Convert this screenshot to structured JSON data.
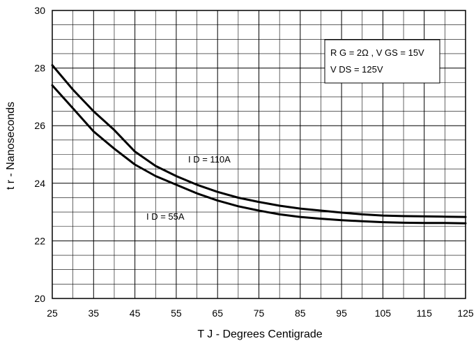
{
  "chart_data": {
    "type": "line",
    "title": "",
    "xlabel": "T J - Degrees Centigrade",
    "ylabel": "t r - Nanoseconds",
    "xlim": [
      25,
      125
    ],
    "ylim": [
      20,
      30
    ],
    "x_ticks": [
      "25",
      "35",
      "45",
      "55",
      "65",
      "75",
      "85",
      "95",
      "105",
      "115",
      "125"
    ],
    "y_ticks": [
      "20",
      "22",
      "24",
      "26",
      "28",
      "30"
    ],
    "grid": true,
    "series": [
      {
        "name": "I D = 110A",
        "x": [
          25,
          30,
          35,
          40,
          45,
          50,
          55,
          60,
          65,
          70,
          75,
          80,
          85,
          90,
          95,
          100,
          105,
          110,
          115,
          120,
          125
        ],
        "y": [
          28.1,
          27.25,
          26.5,
          25.85,
          25.1,
          24.6,
          24.25,
          23.95,
          23.7,
          23.5,
          23.35,
          23.22,
          23.12,
          23.05,
          22.98,
          22.92,
          22.88,
          22.86,
          22.85,
          22.84,
          22.83
        ]
      },
      {
        "name": "I D = 55A",
        "x": [
          25,
          30,
          35,
          40,
          45,
          50,
          55,
          60,
          65,
          70,
          75,
          80,
          85,
          90,
          95,
          100,
          105,
          110,
          115,
          120,
          125
        ],
        "y": [
          27.4,
          26.6,
          25.8,
          25.2,
          24.65,
          24.25,
          23.95,
          23.65,
          23.4,
          23.2,
          23.05,
          22.92,
          22.83,
          22.77,
          22.72,
          22.68,
          22.65,
          22.63,
          22.62,
          22.62,
          22.61
        ]
      }
    ],
    "annotations": [
      {
        "lines": [
          "R G = 2Ω , V GS = 15V",
          "V DS = 125V"
        ],
        "location": "top-right box"
      }
    ]
  }
}
